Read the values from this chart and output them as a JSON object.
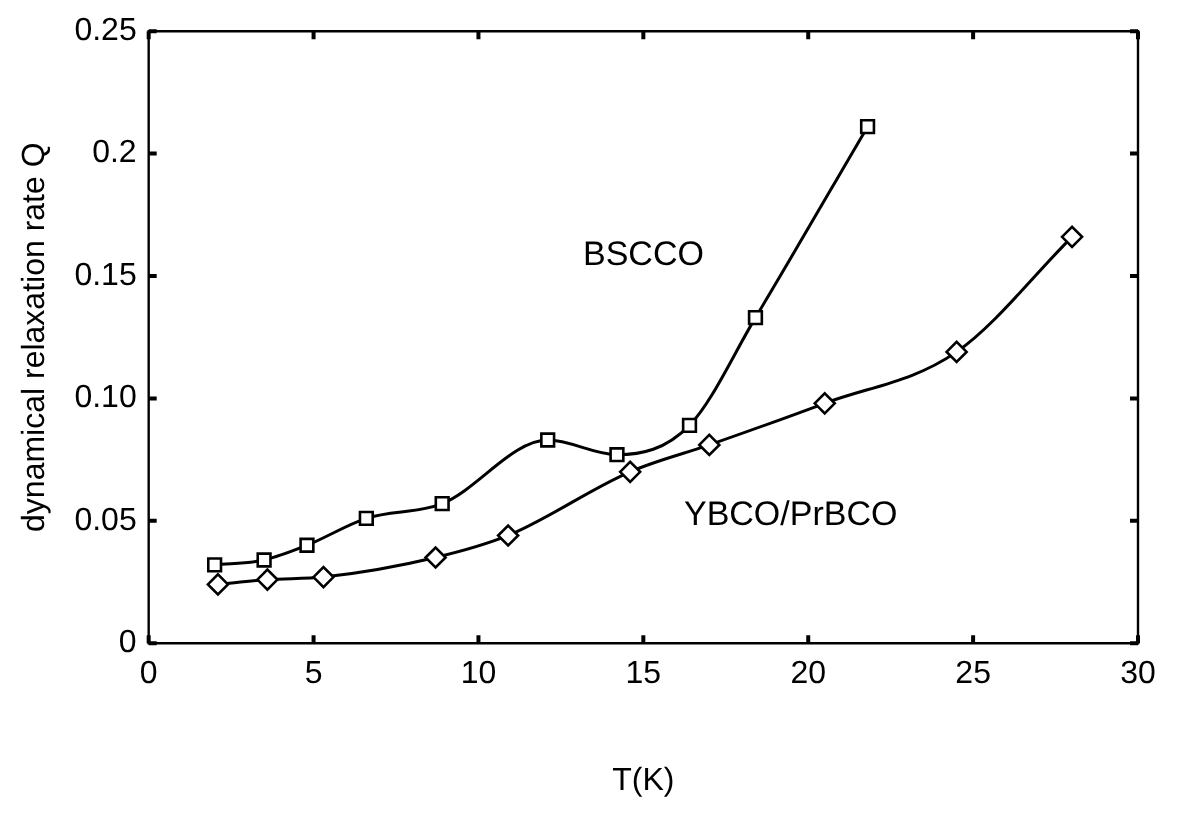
{
  "chart_data": {
    "type": "line",
    "xlabel": "T(K)",
    "ylabel": "dynamical relaxation rate Q",
    "xlim": [
      0,
      30
    ],
    "xticks": [
      0,
      5,
      10,
      15,
      20,
      25,
      30
    ],
    "ylim": [
      0,
      0.25
    ],
    "yticks": [
      {
        "value": 0,
        "label": "0"
      },
      {
        "value": 0.05,
        "label": "0.05"
      },
      {
        "value": 0.1,
        "label": "0.10"
      },
      {
        "value": 0.15,
        "label": "0.15"
      },
      {
        "value": 0.2,
        "label": "0.2"
      },
      {
        "value": 0.25,
        "label": "0.25"
      }
    ],
    "grid": false,
    "legend": false,
    "line_style": "solid",
    "series": [
      {
        "name": "BSCCO",
        "color": "#000000",
        "marker": "square",
        "x": [
          2.0,
          3.5,
          4.8,
          6.6,
          8.9,
          12.1,
          14.2,
          16.4,
          18.4,
          21.8
        ],
        "values": [
          0.032,
          0.034,
          0.04,
          0.051,
          0.057,
          0.083,
          0.077,
          0.089,
          0.133,
          0.211
        ]
      },
      {
        "name": "YBCO/PrBCO",
        "color": "#000000",
        "marker": "diamond",
        "x": [
          2.1,
          3.6,
          5.3,
          8.7,
          10.9,
          14.6,
          17.0,
          20.5,
          24.5,
          28.0
        ],
        "values": [
          0.024,
          0.026,
          0.027,
          0.035,
          0.044,
          0.07,
          0.081,
          0.098,
          0.119,
          0.166
        ]
      }
    ]
  }
}
